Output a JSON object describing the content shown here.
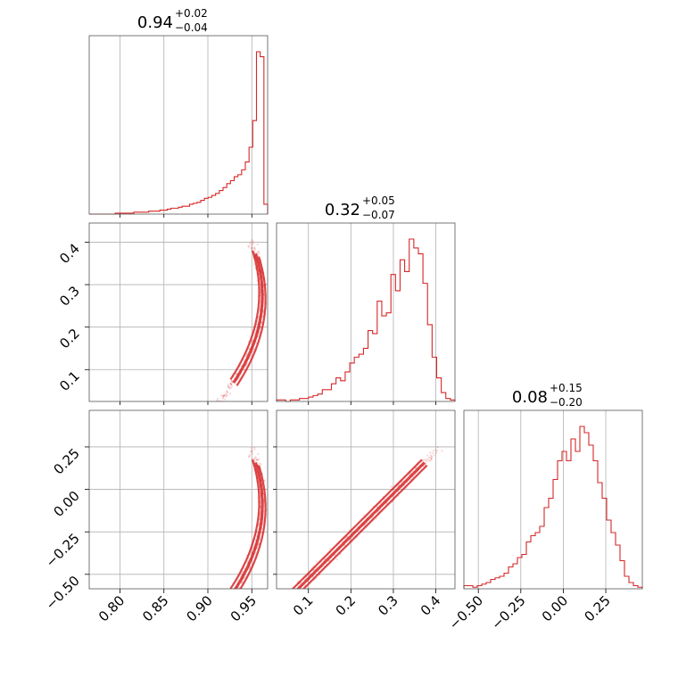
{
  "figure": {
    "colors": {
      "series": "#d62728",
      "grid": "#b0b0b0",
      "frame": "#555555",
      "background": "#ffffff"
    }
  },
  "chart_data": {
    "type": "corner",
    "grid": true,
    "parameters": [
      {
        "title_main": "0.94",
        "title_sup": "+0.02",
        "title_sub": "−0.04",
        "range": [
          0.765,
          0.968
        ],
        "ticks": [
          0.8,
          0.85,
          0.9,
          0.95
        ],
        "tick_labels": [
          "0.80",
          "0.85",
          "0.90",
          "0.95"
        ]
      },
      {
        "title_main": "0.32",
        "title_sup": "+0.05",
        "title_sub": "−0.07",
        "range": [
          0.025,
          0.445
        ],
        "ticks": [
          0.1,
          0.2,
          0.3,
          0.4
        ],
        "tick_labels": [
          "0.1",
          "0.2",
          "0.3",
          "0.4"
        ]
      },
      {
        "title_main": "0.08",
        "title_sup": "+0.15",
        "title_sub": "−0.20",
        "range": [
          -0.585,
          0.465
        ],
        "ticks": [
          -0.5,
          -0.25,
          0.0,
          0.25
        ],
        "tick_labels": [
          "−0.50",
          "−0.25",
          "0.00",
          "0.25"
        ]
      }
    ],
    "histograms": [
      {
        "param": 0,
        "bin_edges_range": [
          0.765,
          0.968
        ],
        "counts": [
          0,
          0,
          0,
          0,
          0,
          0,
          0,
          1,
          1,
          1,
          1,
          1,
          2,
          2,
          2,
          2,
          3,
          3,
          3,
          4,
          4,
          5,
          6,
          6,
          7,
          8,
          8,
          10,
          11,
          12,
          14,
          16,
          17,
          19,
          21,
          24,
          27,
          31,
          34,
          38,
          40,
          45,
          53,
          68,
          95,
          165,
          160,
          10
        ]
      },
      {
        "param": 1,
        "bin_edges_range": [
          0.025,
          0.445
        ],
        "counts": [
          1,
          1,
          0,
          1,
          1,
          2,
          2,
          3,
          4,
          5,
          8,
          8,
          12,
          16,
          14,
          20,
          26,
          30,
          32,
          36,
          48,
          46,
          68,
          58,
          60,
          86,
          75,
          96,
          88,
          110,
          104,
          100,
          80,
          52,
          30,
          16,
          6,
          2,
          1
        ]
      },
      {
        "param": 2,
        "bin_edges_range": [
          -0.585,
          0.465
        ],
        "counts": [
          2,
          2,
          1,
          2,
          3,
          4,
          6,
          7,
          8,
          10,
          14,
          16,
          20,
          22,
          30,
          34,
          36,
          40,
          52,
          58,
          70,
          82,
          88,
          82,
          96,
          88,
          104,
          100,
          92,
          82,
          68,
          58,
          44,
          36,
          28,
          18,
          8,
          4,
          2,
          1
        ]
      }
    ],
    "curve": {
      "description_param": "x = 0.962 - 0.30*t^2 ; y = 0.274 + 0.62*t ; z = -0.09 + 1.55*t",
      "t_range": [
        -0.42,
        0.21
      ]
    }
  }
}
